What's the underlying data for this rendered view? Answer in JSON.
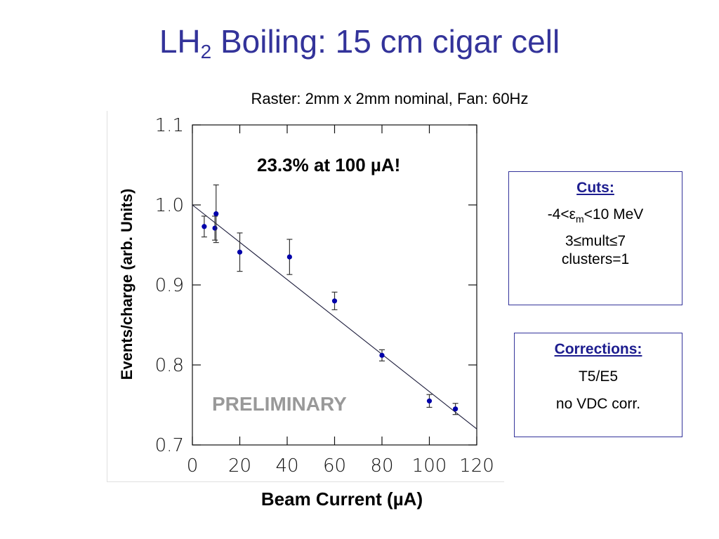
{
  "slide": {
    "title_main": "LH",
    "title_sub": "2",
    "title_rest": " Boiling: 15 cm cigar cell",
    "subtitle": "Raster:  2mm x 2mm nominal, Fan:  60Hz",
    "annotation": "23.3% at 100 µA!",
    "watermark": "PRELIMINARY"
  },
  "cuts_box": {
    "heading": "Cuts:",
    "line1_pre": "-4<ε",
    "line1_sub": "m",
    "line1_post": "<10 MeV",
    "line2": "3≤mult≤7",
    "line3": "clusters=1"
  },
  "corrections_box": {
    "heading": "Corrections:",
    "line1": "T5/E5",
    "line2": "no VDC corr."
  },
  "chart_data": {
    "type": "scatter",
    "title": "",
    "xlabel": "Beam Current (µA)",
    "ylabel": "Events/charge (arb. Units)",
    "xlim": [
      0,
      120
    ],
    "ylim": [
      0.7,
      1.1
    ],
    "x_ticks": [
      0,
      20,
      40,
      60,
      80,
      100,
      120
    ],
    "y_ticks": [
      0.7,
      0.8,
      0.9,
      1.0,
      1.1
    ],
    "x_tick_labels": [
      "0",
      "20",
      "40",
      "60",
      "80",
      "100",
      "120"
    ],
    "y_tick_labels": [
      "0.7",
      "0.8",
      "0.9",
      "1.0",
      "1.1"
    ],
    "grid": false,
    "points": [
      {
        "x": 5,
        "y": 0.973,
        "err": 0.013
      },
      {
        "x": 9.5,
        "y": 0.971,
        "err": 0.015
      },
      {
        "x": 10,
        "y": 0.989,
        "err": 0.036
      },
      {
        "x": 20,
        "y": 0.941,
        "err": 0.024
      },
      {
        "x": 41,
        "y": 0.935,
        "err": 0.022
      },
      {
        "x": 60,
        "y": 0.88,
        "err": 0.011
      },
      {
        "x": 80,
        "y": 0.812,
        "err": 0.007
      },
      {
        "x": 100,
        "y": 0.755,
        "err": 0.008
      },
      {
        "x": 111,
        "y": 0.745,
        "err": 0.007
      }
    ],
    "fit_line": {
      "x": [
        0,
        120
      ],
      "y": [
        1.0,
        0.72
      ]
    },
    "colors": {
      "points": "#0000aa",
      "line": "#1a1a3a",
      "axes": "#111111"
    }
  }
}
